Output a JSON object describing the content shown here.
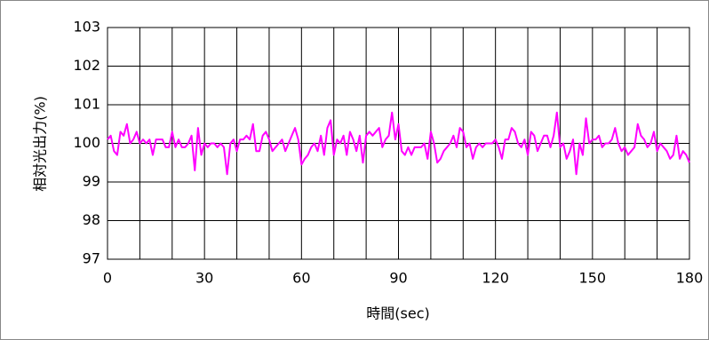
{
  "chart_data": {
    "type": "line",
    "y_label": "相対光出力(%)",
    "x_label": "時間(sec)",
    "xlim": [
      0,
      180
    ],
    "xticks": [
      0,
      30,
      60,
      90,
      120,
      150,
      180
    ],
    "xgrid": [
      0,
      10,
      20,
      30,
      40,
      50,
      60,
      70,
      80,
      90,
      100,
      110,
      120,
      130,
      140,
      150,
      160,
      170,
      180
    ],
    "ylim": [
      97,
      103
    ],
    "yticks": [
      97,
      98,
      99,
      100,
      101,
      102,
      103
    ],
    "grid": true,
    "series": [
      {
        "color": "#ff00ff",
        "x": [
          0,
          1,
          2,
          3,
          4,
          5,
          6,
          7,
          8,
          9,
          10,
          11,
          12,
          13,
          14,
          15,
          16,
          17,
          18,
          19,
          20,
          21,
          22,
          23,
          24,
          25,
          26,
          27,
          28,
          29,
          30,
          31,
          32,
          33,
          34,
          35,
          36,
          37,
          38,
          39,
          40,
          41,
          42,
          43,
          44,
          45,
          46,
          47,
          48,
          49,
          50,
          51,
          52,
          53,
          54,
          55,
          56,
          57,
          58,
          59,
          60,
          61,
          62,
          63,
          64,
          65,
          66,
          67,
          68,
          69,
          70,
          71,
          72,
          73,
          74,
          75,
          76,
          77,
          78,
          79,
          80,
          81,
          82,
          83,
          84,
          85,
          86,
          87,
          88,
          89,
          90,
          91,
          92,
          93,
          94,
          95,
          96,
          97,
          98,
          99,
          100,
          101,
          102,
          103,
          104,
          105,
          106,
          107,
          108,
          109,
          110,
          111,
          112,
          113,
          114,
          115,
          116,
          117,
          118,
          119,
          120,
          121,
          122,
          123,
          124,
          125,
          126,
          127,
          128,
          129,
          130,
          131,
          132,
          133,
          134,
          135,
          136,
          137,
          138,
          139,
          140,
          141,
          142,
          143,
          144,
          145,
          146,
          147,
          148,
          149,
          150,
          151,
          152,
          153,
          154,
          155,
          156,
          157,
          158,
          159,
          160,
          161,
          162,
          163,
          164,
          165,
          166,
          167,
          168,
          169,
          170,
          171,
          172,
          173,
          174,
          175,
          176,
          177,
          178,
          179,
          180
        ],
        "values": [
          100.1,
          100.2,
          99.8,
          99.7,
          100.3,
          100.2,
          100.5,
          100.0,
          100.1,
          100.3,
          100.0,
          100.1,
          100.0,
          100.1,
          99.7,
          100.1,
          100.1,
          100.1,
          99.9,
          99.9,
          100.3,
          99.9,
          100.1,
          99.9,
          99.9,
          100.0,
          100.2,
          99.3,
          100.4,
          99.7,
          100.0,
          99.9,
          100.0,
          100.0,
          99.9,
          100.0,
          99.9,
          99.2,
          100.0,
          100.1,
          99.8,
          100.1,
          100.1,
          100.2,
          100.1,
          100.5,
          99.8,
          99.8,
          100.2,
          100.3,
          100.1,
          99.8,
          99.9,
          100.0,
          100.1,
          99.8,
          100.0,
          100.2,
          100.4,
          100.1,
          99.45,
          99.6,
          99.7,
          99.9,
          100.0,
          99.8,
          100.2,
          99.7,
          100.4,
          100.6,
          99.7,
          100.1,
          100.0,
          100.2,
          99.7,
          100.3,
          100.1,
          99.8,
          100.2,
          99.5,
          100.2,
          100.3,
          100.2,
          100.3,
          100.4,
          99.9,
          100.1,
          100.2,
          100.8,
          100.1,
          100.5,
          99.8,
          99.7,
          99.9,
          99.7,
          99.9,
          99.9,
          99.9,
          100.0,
          99.6,
          100.3,
          100.0,
          99.5,
          99.6,
          99.8,
          99.9,
          100.0,
          100.2,
          99.9,
          100.4,
          100.3,
          99.9,
          100.0,
          99.6,
          99.9,
          100.0,
          99.9,
          100.0,
          100.0,
          100.0,
          100.1,
          99.9,
          99.6,
          100.1,
          100.1,
          100.4,
          100.3,
          100.0,
          99.9,
          100.1,
          99.7,
          100.3,
          100.2,
          99.8,
          100.0,
          100.2,
          100.2,
          99.9,
          100.2,
          100.8,
          99.9,
          100.0,
          99.6,
          99.8,
          100.1,
          99.2,
          100.0,
          99.7,
          100.65,
          100.0,
          100.1,
          100.1,
          100.2,
          99.9,
          100.0,
          100.0,
          100.1,
          100.4,
          100.0,
          99.8,
          99.9,
          99.7,
          99.8,
          99.9,
          100.5,
          100.2,
          100.1,
          99.9,
          100.0,
          100.3,
          99.8,
          100.0,
          99.9,
          99.8,
          99.6,
          99.7,
          100.2,
          99.6,
          99.8,
          99.7,
          99.5
        ]
      }
    ]
  }
}
